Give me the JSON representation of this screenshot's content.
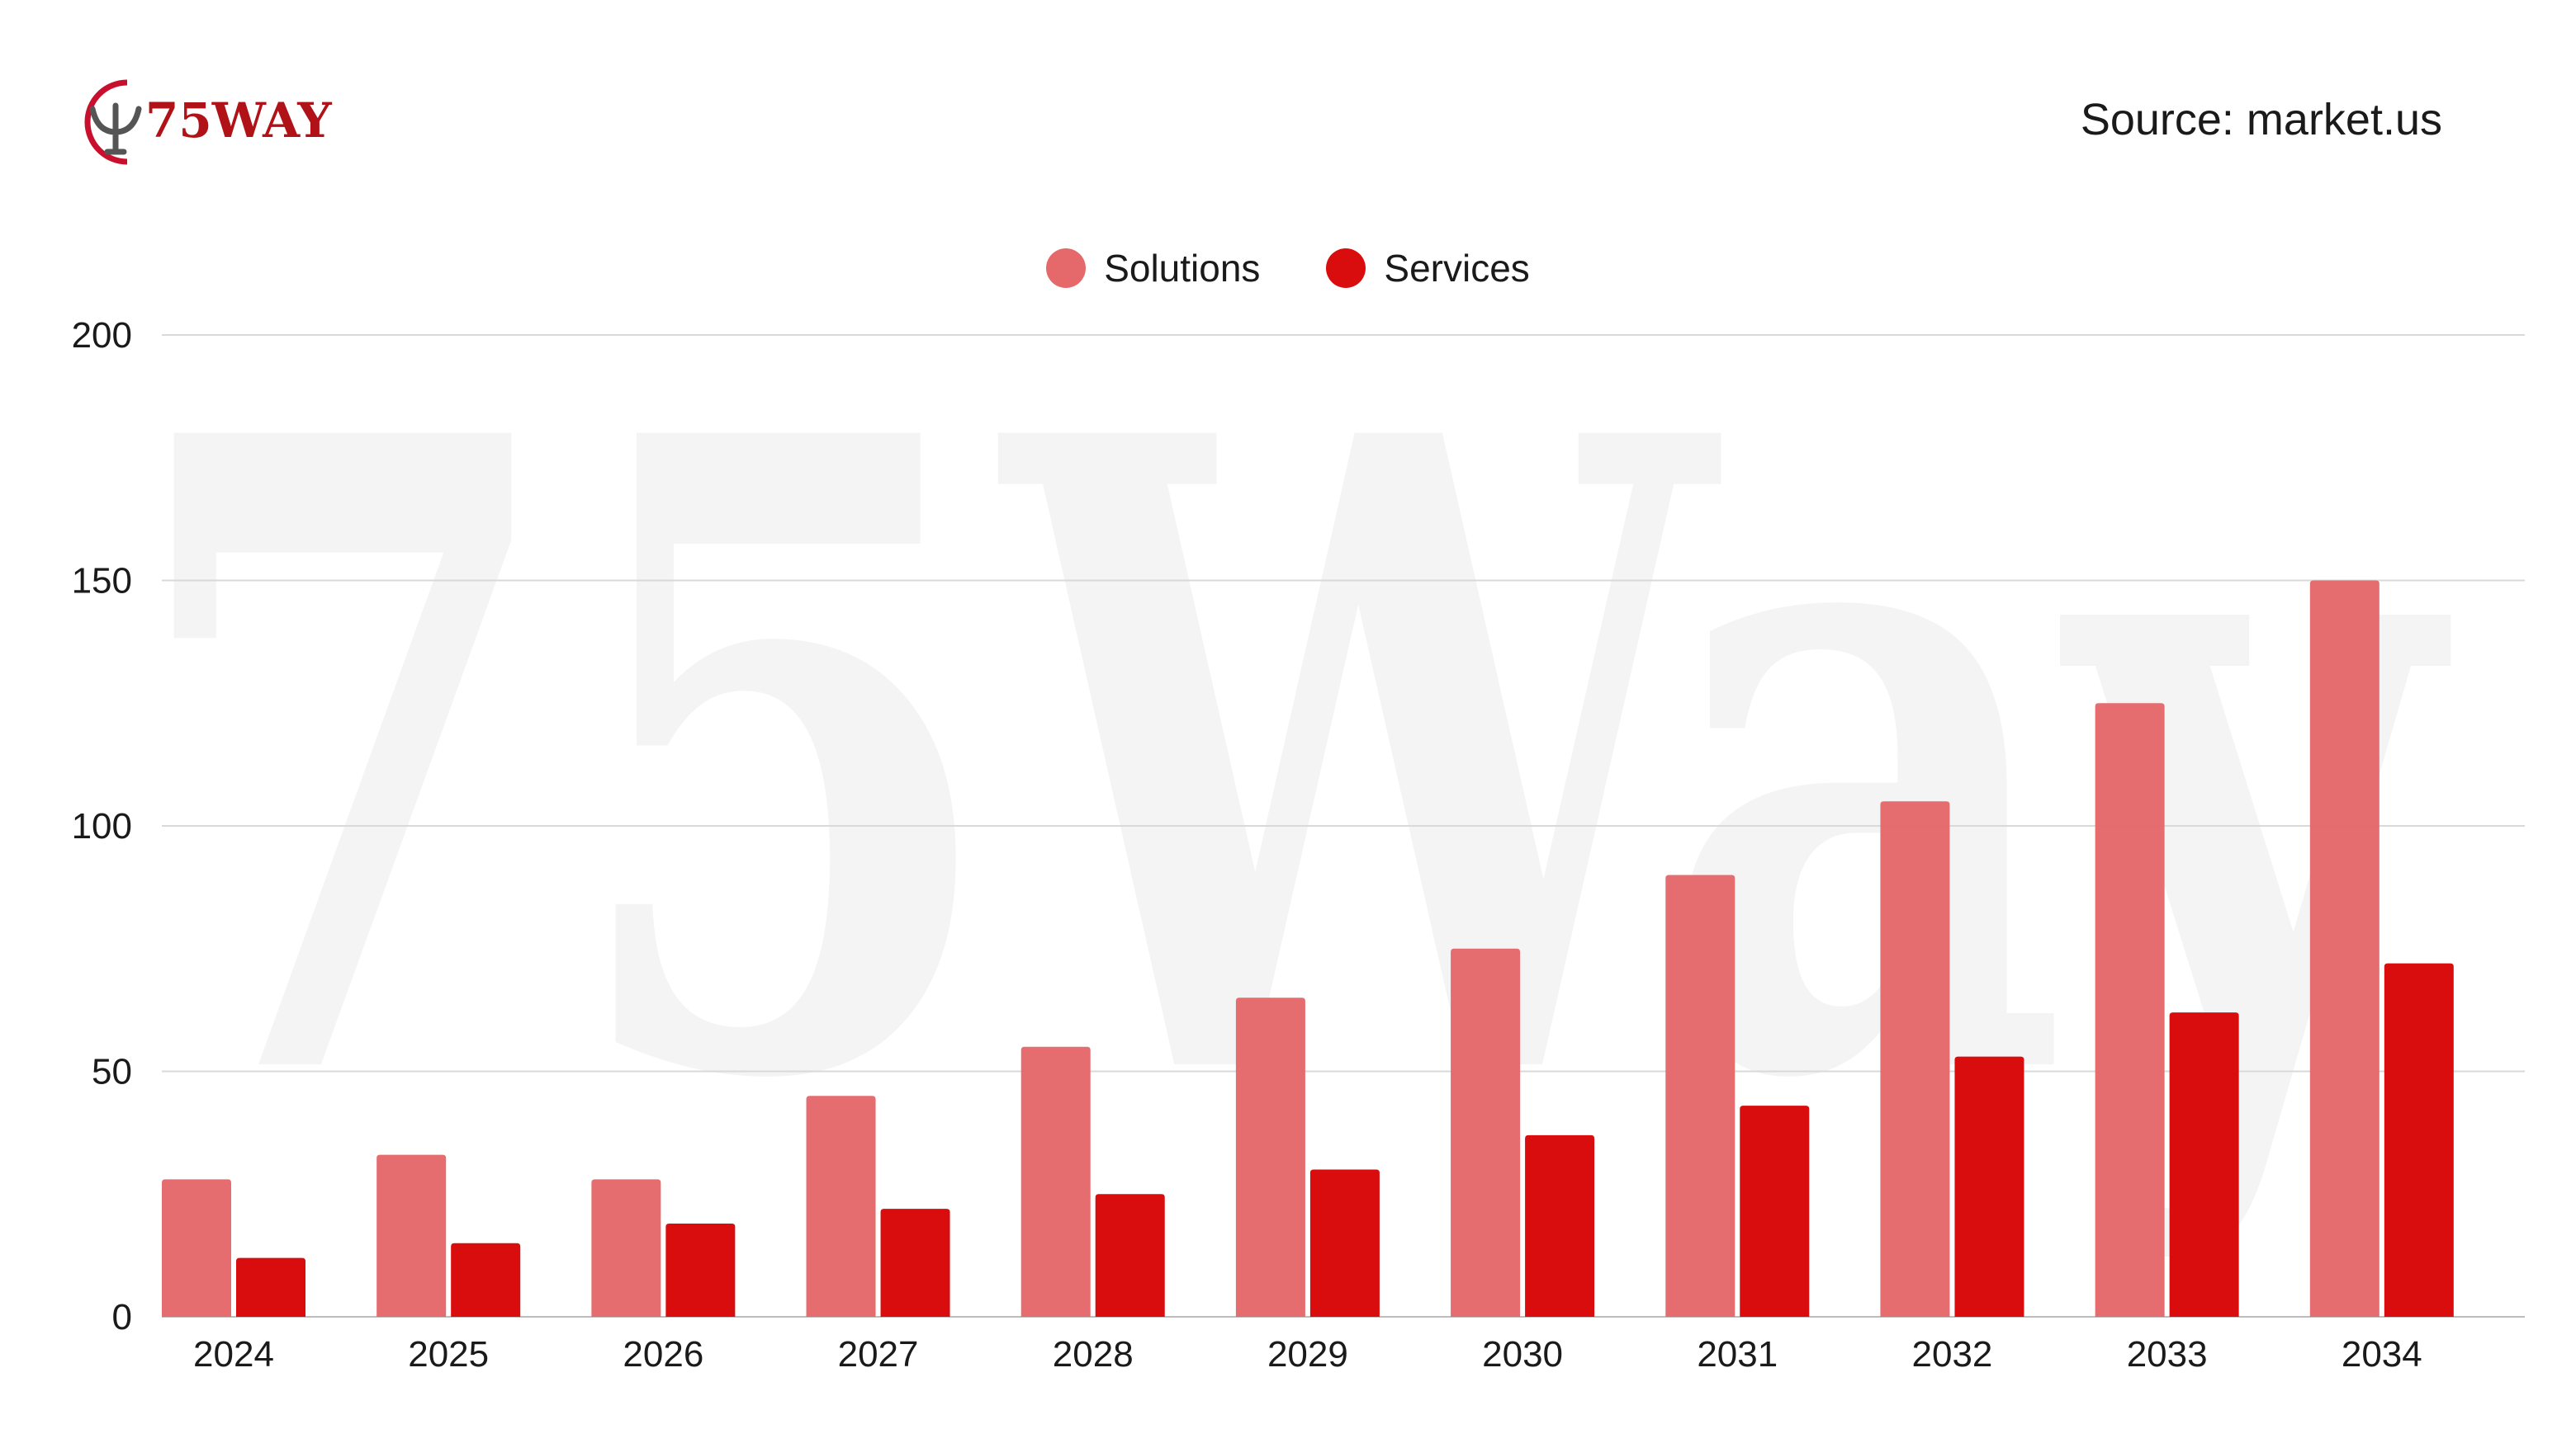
{
  "brand": {
    "logo_text": "75WAY"
  },
  "source": "Source: market.us",
  "watermark": "75Way",
  "colors": {
    "solutions": "#e5686a",
    "services": "#d90d0e",
    "grid": "#d9d9d9",
    "text": "#1a1a1a"
  },
  "chart_data": {
    "type": "bar",
    "categories": [
      "2024",
      "2025",
      "2026",
      "2027",
      "2028",
      "2029",
      "2030",
      "2031",
      "2032",
      "2033",
      "2034"
    ],
    "series": [
      {
        "name": "Solutions",
        "values": [
          28,
          33,
          28,
          45,
          55,
          65,
          75,
          90,
          105,
          125,
          150
        ]
      },
      {
        "name": "Services",
        "values": [
          12,
          15,
          19,
          22,
          25,
          30,
          37,
          43,
          53,
          62,
          72
        ]
      }
    ],
    "yticks": [
      0,
      50,
      100,
      150,
      200
    ],
    "ylim": [
      0,
      200
    ],
    "grid": true,
    "legend": "top-center"
  }
}
